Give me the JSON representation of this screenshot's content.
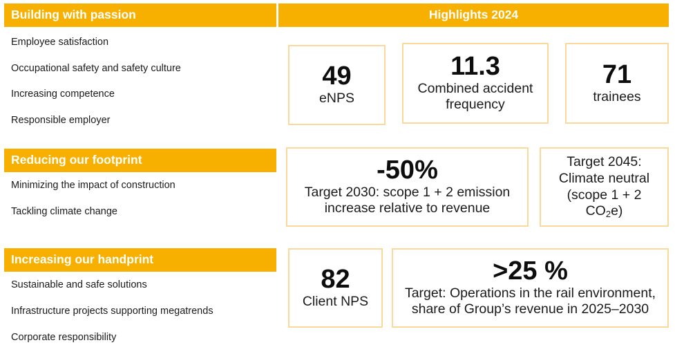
{
  "headers": {
    "passion": "Building with passion",
    "highlights": "Highlights 2024",
    "footprint": "Reducing our footprint",
    "handprint": "Increasing our handprint"
  },
  "passion_items": [
    "Employee satisfaction",
    "Occupational safety and safety culture",
    "Increasing competence",
    "Responsible employer"
  ],
  "footprint_items": [
    "Minimizing the impact of construction",
    "Tackling climate change"
  ],
  "handprint_items": [
    "Sustainable and safe solutions",
    "Infrastructure projects supporting megatrends",
    "Corporate responsibility"
  ],
  "kpis": {
    "enps": {
      "value": "49",
      "label": "eNPS"
    },
    "accident": {
      "value": "11.3",
      "label": "Combined accident frequency"
    },
    "trainees": {
      "value": "71",
      "label": "trainees"
    },
    "emission": {
      "value": "-50%",
      "label": "Target 2030: scope 1 + 2 emission increase relative to revenue"
    },
    "climate": {
      "label_line1": "Target 2045:",
      "label_line2": "Climate neutral",
      "label_line3": "(scope 1 + 2",
      "co": "CO",
      "sub": "2",
      "tail": "e)"
    },
    "client_nps": {
      "value": "82",
      "label": "Client NPS"
    },
    "rail": {
      "value": ">25 %",
      "label": "Target: Operations in the rail environment, share of Group’s revenue in 2025–2030"
    }
  },
  "colors": {
    "accent": "#f7b000",
    "box_border": "#fbd99a"
  }
}
